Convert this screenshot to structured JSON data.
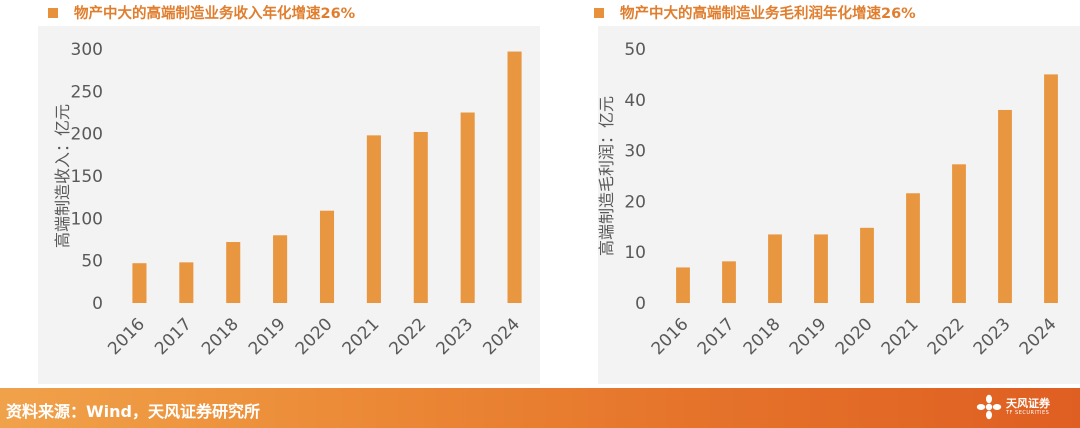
{
  "colors": {
    "bar": "#E8963F",
    "title": "#E07E2E",
    "marker": "#E8913D",
    "panel_bg": "#F3F3F3",
    "axis_text": "#595959"
  },
  "left_chart": {
    "title": "物产中大的高端制造业务收入年化增速26%",
    "ylabel": "高端制造收入：亿元"
  },
  "right_chart": {
    "title": "物产中大的高端制造业务毛利润年化增速26%",
    "ylabel": "高端制造毛利润：亿元"
  },
  "chart_data": [
    {
      "type": "bar",
      "title": "物产中大的高端制造业务收入年化增速26%",
      "xlabel": "",
      "ylabel": "高端制造收入：亿元",
      "categories": [
        "2016",
        "2017",
        "2018",
        "2019",
        "2020",
        "2021",
        "2022",
        "2023",
        "2024"
      ],
      "values": [
        47,
        48,
        72,
        80,
        109,
        198,
        202,
        225,
        297
      ],
      "ylim": [
        0,
        300
      ],
      "yticks": [
        0,
        50,
        100,
        150,
        200,
        250,
        300
      ],
      "grid": false,
      "legend": "none"
    },
    {
      "type": "bar",
      "title": "物产中大的高端制造业务毛利润年化增速26%",
      "xlabel": "",
      "ylabel": "高端制造毛利润：亿元",
      "categories": [
        "2016",
        "2017",
        "2018",
        "2019",
        "2020",
        "2021",
        "2022",
        "2023",
        "2024"
      ],
      "values": [
        7.0,
        8.2,
        13.5,
        13.5,
        14.8,
        21.6,
        27.3,
        38.0,
        45.0
      ],
      "ylim": [
        0,
        50
      ],
      "yticks": [
        0,
        10,
        20,
        30,
        40,
        50
      ],
      "grid": false,
      "legend": "none"
    }
  ],
  "footer": {
    "source": "资料来源：Wind，天风证券研究所",
    "logo_text": "天风证券",
    "logo_sub": "TF SECURITIES",
    "logo_icon": "flower-logo-icon"
  }
}
